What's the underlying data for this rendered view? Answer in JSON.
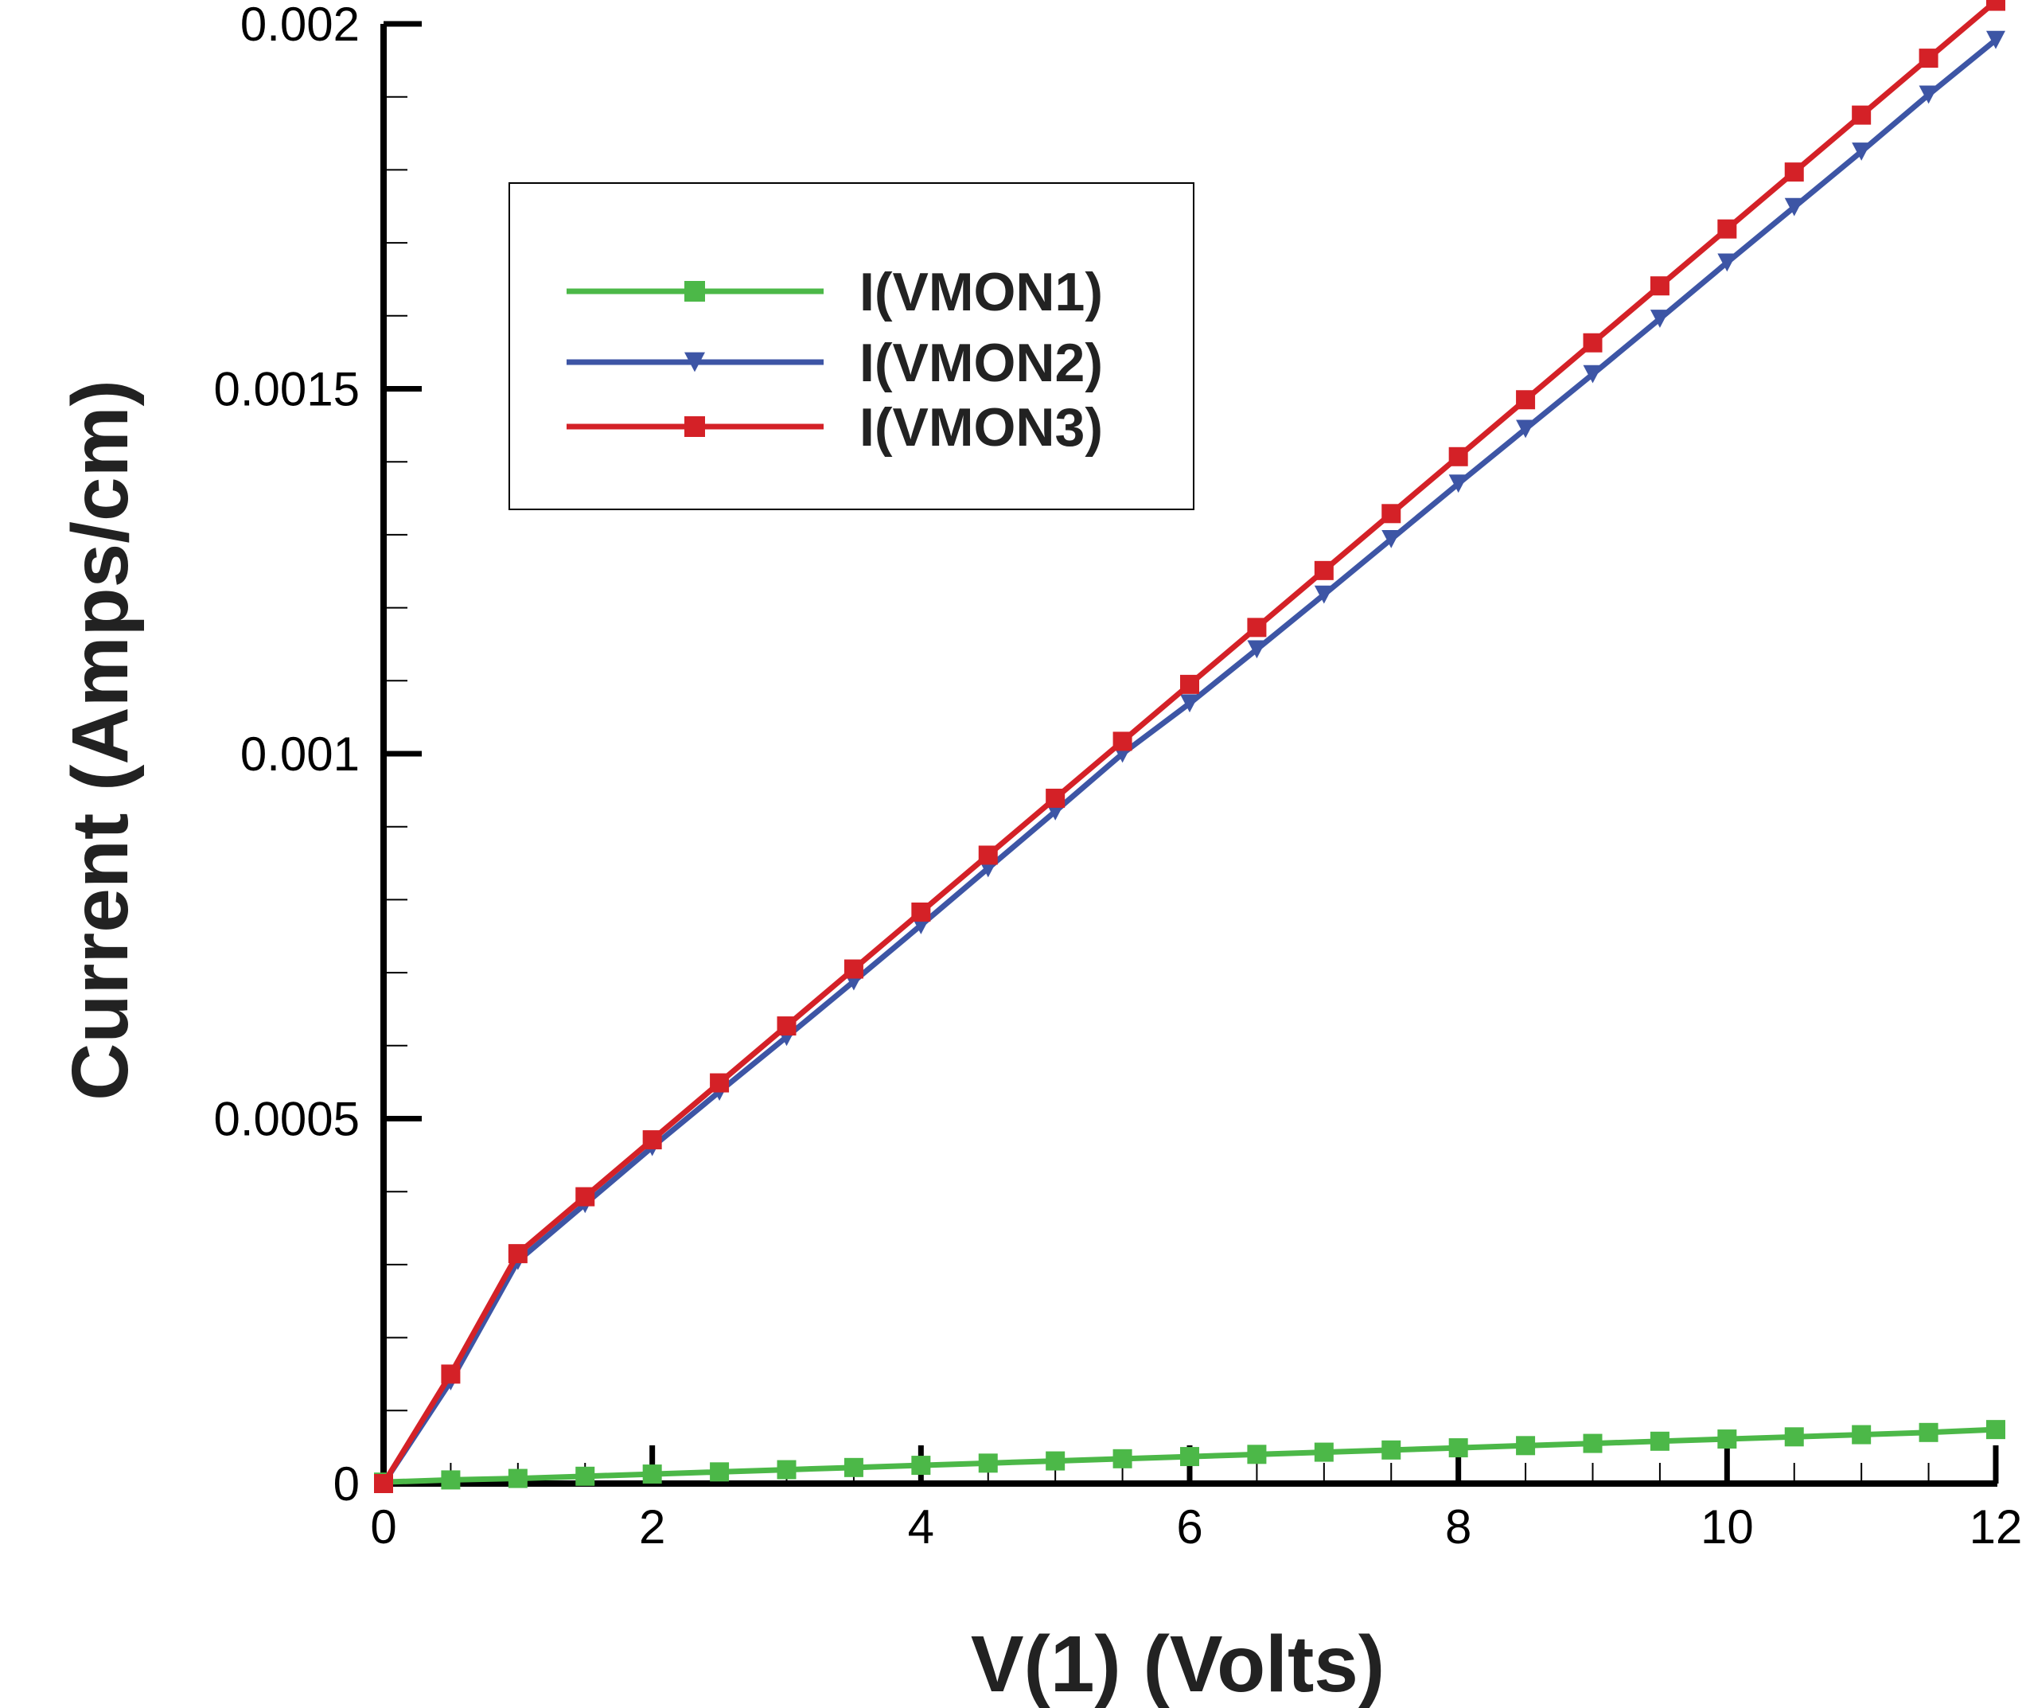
{
  "chart_data": {
    "type": "line",
    "xlabel": "V(1)  (Volts)",
    "ylabel": "Current (Amps/cm)",
    "xlim": [
      0,
      12
    ],
    "ylim": [
      0,
      0.002
    ],
    "x_ticks": [
      "0",
      "2",
      "4",
      "6",
      "8",
      "10",
      "12"
    ],
    "y_ticks": [
      "0",
      "0.0005",
      "0.001",
      "0.0015",
      "0.002"
    ],
    "grid": false,
    "legend_position": "top-left",
    "x": [
      0,
      0.5,
      1,
      1.5,
      2,
      2.5,
      3,
      3.5,
      4,
      4.5,
      5,
      5.5,
      6,
      6.5,
      7,
      7.5,
      8,
      8.5,
      9,
      9.5,
      10,
      10.5,
      11,
      11.5,
      12
    ],
    "series": [
      {
        "name": "I(VMON1)",
        "color": "#4cb848",
        "marker": "square",
        "values": [
          2e-06,
          5e-06,
          7e-06,
          1e-05,
          1.3e-05,
          1.6e-05,
          1.9e-05,
          2.2e-05,
          2.5e-05,
          2.8e-05,
          3.1e-05,
          3.4e-05,
          3.7e-05,
          4e-05,
          4.3e-05,
          4.6e-05,
          4.9e-05,
          5.2e-05,
          5.5e-05,
          5.8e-05,
          6.1e-05,
          6.4e-05,
          6.7e-05,
          7e-05,
          7.4e-05
        ]
      },
      {
        "name": "I(VMON2)",
        "color": "#3d55a5",
        "marker": "triangle-down",
        "values": [
          0,
          0.00014,
          0.000305,
          0.000383,
          0.000461,
          0.000537,
          0.000612,
          0.000688,
          0.000765,
          0.000843,
          0.000921,
          0.001,
          0.001069,
          0.001143,
          0.001218,
          0.001294,
          0.00137,
          0.001445,
          0.00152,
          0.001596,
          0.001673,
          0.001749,
          0.001825,
          0.001903,
          0.001978
        ]
      },
      {
        "name": "I(VMON3)",
        "color": "#d42127",
        "marker": "square",
        "values": [
          0,
          0.00015,
          0.000315,
          0.000393,
          0.000471,
          0.000549,
          0.000627,
          0.000705,
          0.000783,
          0.000861,
          0.000939,
          0.001017,
          0.001095,
          0.001173,
          0.001251,
          0.001329,
          0.001407,
          0.001485,
          0.001563,
          0.001641,
          0.001719,
          0.001797,
          0.001875,
          0.001953,
          0.002031
        ]
      }
    ]
  }
}
